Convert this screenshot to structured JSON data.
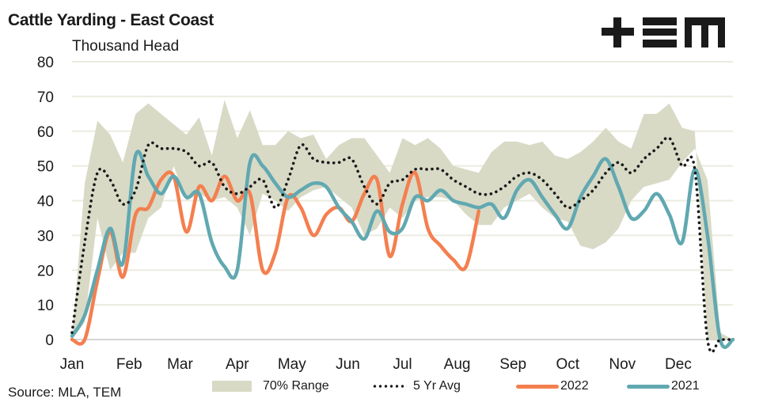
{
  "header": {
    "title": "Cattle Yarding - East Coast",
    "subtitle": "Thousand Head",
    "logo": "+EM"
  },
  "source": "Source: MLA, TEM",
  "colors": {
    "range": "#d8dac6",
    "avg": "#1a1a1a",
    "y2022": "#f47f4f",
    "y2021": "#61a8b1",
    "grid": "#ebebe0",
    "axis": "#d4d4d4"
  },
  "chart_data": {
    "type": "line",
    "title": "Cattle Yarding - East Coast",
    "ylabel": "Thousand Head",
    "xlabel": "",
    "ylim": [
      0,
      80
    ],
    "yticks": [
      0,
      10,
      20,
      30,
      40,
      50,
      60,
      70,
      80
    ],
    "x_unit": "week",
    "xlim": [
      0,
      52
    ],
    "month_ticks": [
      {
        "label": "Jan",
        "week": 0
      },
      {
        "label": "Feb",
        "week": 4.5
      },
      {
        "label": "Mar",
        "week": 8.5
      },
      {
        "label": "Apr",
        "week": 13
      },
      {
        "label": "May",
        "week": 17.3
      },
      {
        "label": "Jun",
        "week": 21.7
      },
      {
        "label": "Jul",
        "week": 26
      },
      {
        "label": "Aug",
        "week": 30.3
      },
      {
        "label": "Sep",
        "week": 34.7
      },
      {
        "label": "Oct",
        "week": 39
      },
      {
        "label": "Nov",
        "week": 43.3
      },
      {
        "label": "Dec",
        "week": 47.7
      }
    ],
    "grid": true,
    "legend_position": "bottom",
    "legend": [
      "70% Range",
      "5 Yr Avg",
      "2022",
      "2021"
    ],
    "series": [
      {
        "name": "70% Range",
        "kind": "band",
        "low": [
          0,
          5,
          35,
          20,
          25,
          25,
          35,
          38,
          50,
          40,
          42,
          40,
          41,
          38,
          30,
          42,
          40,
          37,
          41,
          43,
          44,
          41,
          38,
          30,
          32,
          38,
          35,
          40,
          41,
          41,
          40,
          36,
          33,
          33,
          38,
          40,
          42,
          38,
          35,
          34,
          27,
          26,
          28,
          32,
          40,
          44,
          45,
          46,
          51,
          55,
          46,
          2,
          0
        ],
        "high": [
          0,
          45,
          63,
          59,
          51,
          65,
          68,
          65,
          62,
          59,
          64,
          53,
          69,
          58,
          66,
          56,
          56,
          60,
          58,
          59,
          52,
          56,
          58,
          58,
          53,
          48,
          58,
          56,
          58,
          55,
          50,
          49,
          48,
          54,
          57,
          57,
          56,
          57,
          53,
          52,
          54,
          57,
          61,
          57,
          55,
          65,
          65,
          68,
          61,
          60,
          0,
          0,
          0
        ]
      },
      {
        "name": "5 Yr Avg",
        "kind": "dotted",
        "values": [
          2,
          28,
          48,
          46,
          39,
          43,
          56,
          55,
          55,
          54,
          50,
          51,
          44,
          42,
          44,
          46,
          38,
          46,
          56,
          52,
          51,
          51,
          52,
          44,
          39,
          45,
          46,
          49,
          49,
          49,
          46,
          44,
          42,
          42,
          44,
          47,
          48,
          46,
          42,
          38,
          40,
          43,
          48,
          51,
          48,
          52,
          55,
          58,
          50,
          49,
          0,
          0,
          0
        ]
      },
      {
        "name": "2022",
        "kind": "line",
        "values": [
          0,
          0,
          17,
          31,
          18,
          36,
          38,
          46,
          47,
          31,
          44,
          40,
          47,
          40,
          42,
          20,
          25,
          41,
          38,
          30,
          36,
          38,
          34,
          42,
          46,
          24,
          39,
          48,
          32,
          27,
          23,
          21,
          37,
          null,
          null,
          null,
          null,
          null,
          null,
          null,
          null,
          null,
          null,
          null,
          null,
          null,
          null,
          null,
          null,
          null,
          null,
          null,
          null
        ]
      },
      {
        "name": "2021",
        "kind": "line",
        "values": [
          1,
          7,
          20,
          32,
          22,
          53,
          47,
          42,
          47,
          41,
          42,
          28,
          21,
          20,
          51,
          50,
          45,
          41,
          43,
          45,
          44,
          38,
          34,
          29,
          37,
          31,
          32,
          41,
          40,
          43,
          40,
          39,
          38,
          39,
          35,
          43,
          46,
          41,
          36,
          32,
          41,
          47,
          52,
          44,
          35,
          37,
          42,
          36,
          28,
          49,
          30,
          0,
          0
        ]
      }
    ]
  }
}
